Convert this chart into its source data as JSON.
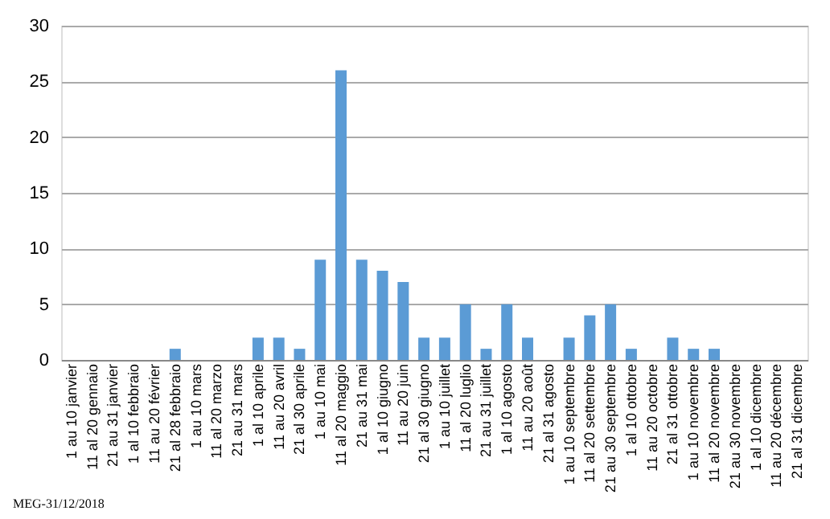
{
  "chart_data": {
    "type": "bar",
    "categories": [
      "1 au 10 janvier",
      "11 al 20 gennaio",
      "21 au 31 janvier",
      "1 al 10 febbraio",
      "11 au 20 février",
      "21 al 28 febbraio",
      "1 au 10 mars",
      "11 al 20 marzo",
      "21 au 31 mars",
      "1 al 10 aprile",
      "11 au 20 avril",
      "21 al 30 aprile",
      "1 au 10 mai",
      "11 al 20 maggio",
      "21 au 31 mai",
      "1 al 10 giugno",
      "11 au 20 juin",
      "21 al 30 giugno",
      "1 au 10 juillet",
      "11 al 20 luglio",
      "21 au 31 juillet",
      "1 al 10 agosto",
      "11 au 20 août",
      "21 al 31 agosto",
      "1 au 10 septembre",
      "11 al 20 settembre",
      "21 au 30 septembre",
      "1 al 10 ottobre",
      "11 au 20 octobre",
      "21 al 31 ottobre",
      "1 au 10 novembre",
      "11 al 20 novembre",
      "21 au 30 novembre",
      "1 al 10 dicembre",
      "11 au 20 décembre",
      "21 al 31 dicembre"
    ],
    "values": [
      0,
      0,
      0,
      0,
      0,
      1,
      0,
      0,
      0,
      2,
      2,
      1,
      9,
      26,
      9,
      8,
      7,
      2,
      2,
      5,
      1,
      5,
      2,
      0,
      2,
      4,
      5,
      1,
      0,
      2,
      1,
      1,
      0,
      0,
      0,
      0
    ],
    "color": "#5b9bd5",
    "ylim": [
      0,
      30
    ],
    "yticks": [
      0,
      5,
      10,
      15,
      20,
      25,
      30
    ],
    "grid": "y",
    "annotations": [
      "MEG-31/12/2018"
    ]
  }
}
